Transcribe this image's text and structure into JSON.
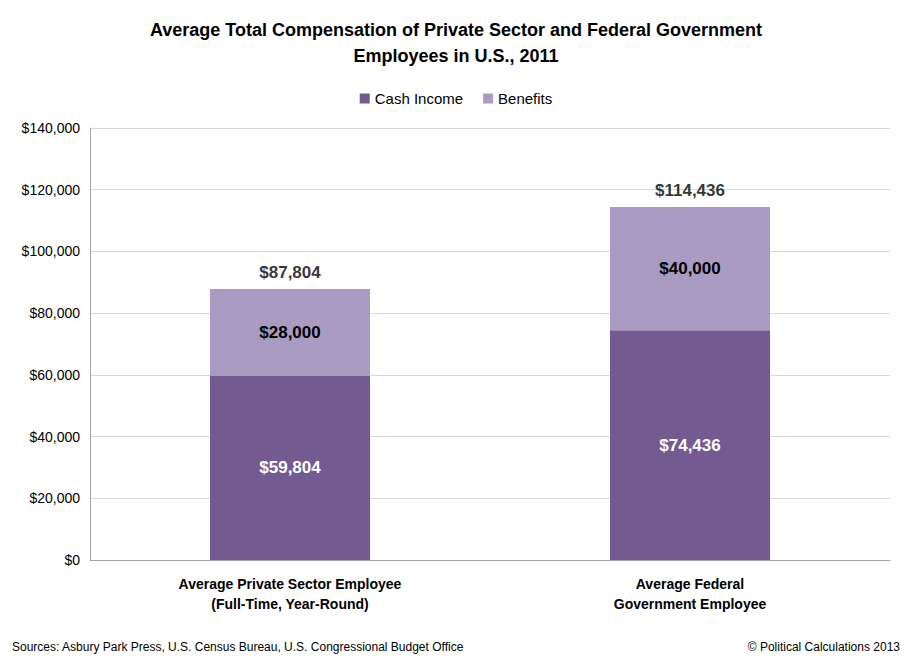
{
  "chart_data": {
    "type": "bar",
    "title": "Average Total Compensation of Private Sector and Federal Government\nEmployees in U.S., 2011",
    "categories": [
      "Average Private Sector Employee\n(Full-Time, Year-Round)",
      "Average Federal\nGovernment Employee"
    ],
    "series": [
      {
        "name": "Cash Income",
        "color": "#735a91",
        "values": [
          59804,
          74436
        ],
        "value_labels": [
          "$59,804",
          "$74,436"
        ]
      },
      {
        "name": "Benefits",
        "color": "#a99bc2",
        "values": [
          28000,
          40000
        ],
        "value_labels": [
          "$28,000",
          "$40,000"
        ]
      }
    ],
    "totals": [
      87804,
      114436
    ],
    "total_labels": [
      "$87,804",
      "$114,436"
    ],
    "stacked": true,
    "data_labels": true,
    "legend": "top",
    "grid": true,
    "ylim": [
      0,
      140000
    ],
    "yticks": [
      {
        "value": 0,
        "label": "$0"
      },
      {
        "value": 20000,
        "label": "$20,000"
      },
      {
        "value": 40000,
        "label": "$40,000"
      },
      {
        "value": 60000,
        "label": "$60,000"
      },
      {
        "value": 80000,
        "label": "$80,000"
      },
      {
        "value": 100000,
        "label": "$100,000"
      },
      {
        "value": 120000,
        "label": "$120,000"
      },
      {
        "value": 140000,
        "label": "$140,000"
      }
    ],
    "annotations": [
      {
        "text": "Sources: Asbury Park Press, U.S. Census Bureau, U.S. Congressional Budget Office"
      },
      {
        "text": "© Political Calculations 2013"
      }
    ]
  }
}
